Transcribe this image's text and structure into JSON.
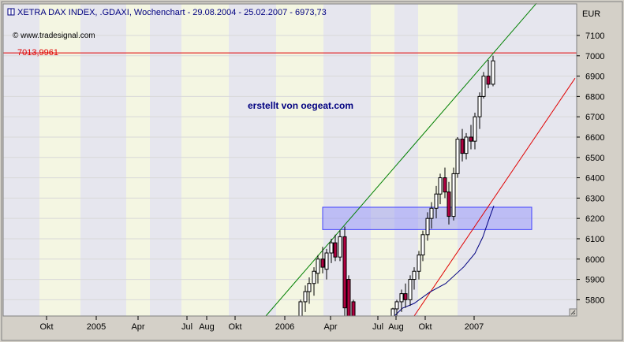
{
  "header": {
    "title": "XETRA DAX INDEX, .GDAXI, Wochenchart - 29.08.2004 - 25.02.2007 - 6973,73",
    "copyright": "© www.tradesignal.com",
    "currency": "EUR"
  },
  "chart_data": {
    "type": "candlestick",
    "title": "XETRA DAX INDEX, .GDAXI, Wochenchart - 29.08.2004 - 25.02.2007 - 6973,73",
    "ylabel": "EUR",
    "ylim": [
      5720,
      7255
    ],
    "y_ticks": [
      5800,
      5900,
      6000,
      6100,
      6200,
      6300,
      6400,
      6500,
      6600,
      6700,
      6800,
      6900,
      7000,
      7100
    ],
    "x_ticks": [
      "Okt",
      "2005",
      "Apr",
      "Jul",
      "Aug",
      "Okt",
      "2006",
      "Apr",
      "Jul",
      "Aug",
      "Okt",
      "2007"
    ],
    "x_tick_positions": [
      59,
      122,
      175,
      237,
      262,
      298,
      361,
      419,
      479,
      502,
      539,
      601
    ],
    "annotation": "erstellt von oegeat.com",
    "resistance_level": {
      "value": 7013.9961,
      "label": "7013,9961",
      "color": "#e00000"
    },
    "rectangle": {
      "y_low": 6145,
      "y_high": 6255,
      "color": "#8080ff"
    },
    "green_trendline": {
      "color": "#008000",
      "points": [
        [
          337,
          5720
        ],
        [
          680,
          7258
        ]
      ]
    },
    "red_trendline": {
      "color": "#e00000",
      "points": [
        [
          525,
          5720
        ],
        [
          729,
          6890
        ]
      ]
    },
    "moving_average": {
      "color": "#000080",
      "points": [
        [
          500,
          5720
        ],
        [
          510,
          5758
        ],
        [
          525,
          5782
        ],
        [
          545,
          5838
        ],
        [
          565,
          5880
        ],
        [
          588,
          5962
        ],
        [
          602,
          6028
        ],
        [
          612,
          6108
        ],
        [
          620,
          6198
        ],
        [
          626,
          6262
        ]
      ]
    },
    "candles": [
      {
        "x": 381,
        "o": 5720,
        "h": 5800,
        "l": 5720,
        "c": 5790
      },
      {
        "x": 387,
        "o": 5790,
        "h": 5870,
        "l": 5740,
        "c": 5840
      },
      {
        "x": 392,
        "o": 5840,
        "h": 5910,
        "l": 5780,
        "c": 5880
      },
      {
        "x": 398,
        "o": 5880,
        "h": 5960,
        "l": 5820,
        "c": 5940
      },
      {
        "x": 403,
        "o": 5930,
        "h": 6020,
        "l": 5880,
        "c": 6000
      },
      {
        "x": 409,
        "o": 6000,
        "h": 6060,
        "l": 5930,
        "c": 5960
      },
      {
        "x": 414,
        "o": 5950,
        "h": 6050,
        "l": 5900,
        "c": 6030
      },
      {
        "x": 420,
        "o": 6030,
        "h": 6100,
        "l": 5980,
        "c": 6080
      },
      {
        "x": 425,
        "o": 6080,
        "h": 6120,
        "l": 5990,
        "c": 6010
      },
      {
        "x": 431,
        "o": 6010,
        "h": 6140,
        "l": 5990,
        "c": 6110
      },
      {
        "x": 437,
        "o": 6110,
        "h": 6160,
        "l": 5720,
        "c": 5760
      },
      {
        "x": 442,
        "o": 5900,
        "h": 5920,
        "l": 5720,
        "c": 5720
      },
      {
        "x": 448,
        "o": 5790,
        "h": 5800,
        "l": 5720,
        "c": 5720
      },
      {
        "x": 498,
        "o": 5720,
        "h": 5760,
        "l": 5720,
        "c": 5755
      },
      {
        "x": 503,
        "o": 5755,
        "h": 5800,
        "l": 5720,
        "c": 5790
      },
      {
        "x": 509,
        "o": 5790,
        "h": 5850,
        "l": 5740,
        "c": 5830
      },
      {
        "x": 514,
        "o": 5830,
        "h": 5880,
        "l": 5760,
        "c": 5800
      },
      {
        "x": 520,
        "o": 5800,
        "h": 5920,
        "l": 5770,
        "c": 5900
      },
      {
        "x": 525,
        "o": 5900,
        "h": 5960,
        "l": 5850,
        "c": 5940
      },
      {
        "x": 531,
        "o": 5940,
        "h": 6040,
        "l": 5900,
        "c": 6020
      },
      {
        "x": 536,
        "o": 6020,
        "h": 6140,
        "l": 5990,
        "c": 6120
      },
      {
        "x": 542,
        "o": 6120,
        "h": 6230,
        "l": 6090,
        "c": 6200
      },
      {
        "x": 547,
        "o": 6200,
        "h": 6280,
        "l": 6150,
        "c": 6250
      },
      {
        "x": 553,
        "o": 6250,
        "h": 6360,
        "l": 6200,
        "c": 6320
      },
      {
        "x": 558,
        "o": 6320,
        "h": 6420,
        "l": 6270,
        "c": 6400
      },
      {
        "x": 564,
        "o": 6400,
        "h": 6450,
        "l": 6300,
        "c": 6330
      },
      {
        "x": 569,
        "o": 6330,
        "h": 6380,
        "l": 6170,
        "c": 6210
      },
      {
        "x": 575,
        "o": 6210,
        "h": 6450,
        "l": 6190,
        "c": 6420
      },
      {
        "x": 580,
        "o": 6420,
        "h": 6600,
        "l": 6400,
        "c": 6590
      },
      {
        "x": 586,
        "o": 6590,
        "h": 6640,
        "l": 6480,
        "c": 6520
      },
      {
        "x": 591,
        "o": 6520,
        "h": 6620,
        "l": 6490,
        "c": 6600
      },
      {
        "x": 597,
        "o": 6600,
        "h": 6660,
        "l": 6540,
        "c": 6580
      },
      {
        "x": 602,
        "o": 6580,
        "h": 6720,
        "l": 6540,
        "c": 6700
      },
      {
        "x": 608,
        "o": 6700,
        "h": 6820,
        "l": 6640,
        "c": 6800
      },
      {
        "x": 613,
        "o": 6800,
        "h": 6920,
        "l": 6790,
        "c": 6900
      },
      {
        "x": 619,
        "o": 6900,
        "h": 6980,
        "l": 6840,
        "c": 6860
      },
      {
        "x": 625,
        "o": 6860,
        "h": 7000,
        "l": 6850,
        "c": 6975
      }
    ]
  }
}
